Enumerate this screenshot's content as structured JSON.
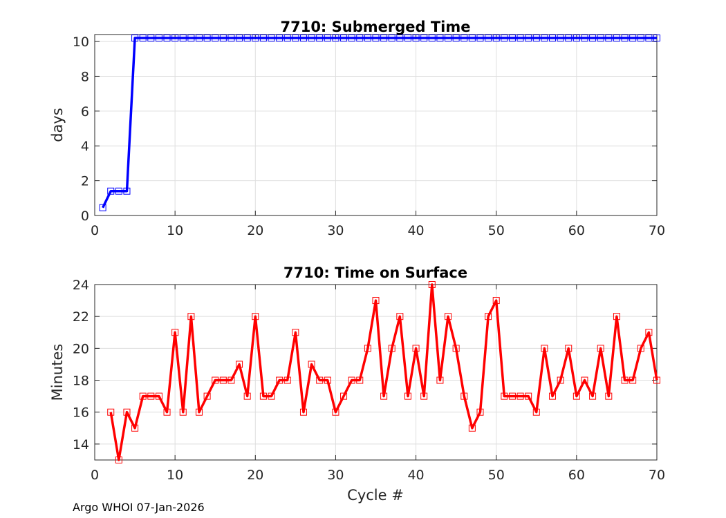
{
  "chart_data": [
    {
      "type": "line",
      "title": "7710: Submerged Time",
      "xlabel": "",
      "ylabel": "days",
      "xlim": [
        0,
        70
      ],
      "ylim": [
        0,
        10.4
      ],
      "xticks": [
        "0",
        "10",
        "20",
        "30",
        "40",
        "50",
        "60",
        "70"
      ],
      "yticks": [
        "0",
        "2",
        "4",
        "6",
        "8",
        "10"
      ],
      "grid": true,
      "series": [
        {
          "name": "submerged_days",
          "color": "#0000ff",
          "marker": "square",
          "x": [
            1,
            2,
            3,
            4,
            5,
            6,
            7,
            8,
            9,
            10,
            11,
            12,
            13,
            14,
            15,
            16,
            17,
            18,
            19,
            20,
            21,
            22,
            23,
            24,
            25,
            26,
            27,
            28,
            29,
            30,
            31,
            32,
            33,
            34,
            35,
            36,
            37,
            38,
            39,
            40,
            41,
            42,
            43,
            44,
            45,
            46,
            47,
            48,
            49,
            50,
            51,
            52,
            53,
            54,
            55,
            56,
            57,
            58,
            59,
            60,
            61,
            62,
            63,
            64,
            65,
            66,
            67,
            68,
            69,
            70
          ],
          "values": [
            0.45,
            1.4,
            1.4,
            1.4,
            10.2,
            10.2,
            10.2,
            10.2,
            10.2,
            10.2,
            10.2,
            10.2,
            10.2,
            10.2,
            10.2,
            10.2,
            10.2,
            10.2,
            10.2,
            10.2,
            10.2,
            10.2,
            10.2,
            10.2,
            10.2,
            10.2,
            10.2,
            10.2,
            10.2,
            10.2,
            10.2,
            10.2,
            10.2,
            10.2,
            10.2,
            10.2,
            10.2,
            10.2,
            10.2,
            10.2,
            10.2,
            10.2,
            10.2,
            10.2,
            10.2,
            10.2,
            10.2,
            10.2,
            10.2,
            10.2,
            10.2,
            10.2,
            10.2,
            10.2,
            10.2,
            10.2,
            10.2,
            10.2,
            10.2,
            10.2,
            10.2,
            10.2,
            10.2,
            10.2,
            10.2,
            10.2,
            10.2,
            10.2,
            10.2,
            10.2
          ]
        }
      ]
    },
    {
      "type": "line",
      "title": "7710: Time on Surface",
      "xlabel": "Cycle #",
      "ylabel": "Minutes",
      "xlim": [
        0,
        70
      ],
      "ylim": [
        13,
        24
      ],
      "xticks": [
        "0",
        "10",
        "20",
        "30",
        "40",
        "50",
        "60",
        "70"
      ],
      "yticks": [
        "14",
        "16",
        "18",
        "20",
        "22",
        "24"
      ],
      "grid": true,
      "series": [
        {
          "name": "surface_minutes",
          "color": "#ff0000",
          "marker": "square",
          "x": [
            2,
            3,
            4,
            5,
            6,
            7,
            8,
            9,
            10,
            11,
            12,
            13,
            14,
            15,
            16,
            17,
            18,
            19,
            20,
            21,
            22,
            23,
            24,
            25,
            26,
            27,
            28,
            29,
            30,
            31,
            32,
            33,
            34,
            35,
            36,
            37,
            38,
            39,
            40,
            41,
            42,
            43,
            44,
            45,
            46,
            47,
            48,
            49,
            50,
            51,
            52,
            53,
            54,
            55,
            56,
            57,
            58,
            59,
            60,
            61,
            62,
            63,
            64,
            65,
            66,
            67,
            68,
            69,
            70
          ],
          "values": [
            16,
            13,
            16,
            15,
            17,
            17,
            17,
            16,
            21,
            16,
            22,
            16,
            17,
            18,
            18,
            18,
            19,
            17,
            22,
            17,
            17,
            18,
            18,
            21,
            16,
            19,
            18,
            18,
            16,
            17,
            18,
            18,
            20,
            23,
            17,
            20,
            22,
            17,
            20,
            17,
            24,
            18,
            22,
            20,
            17,
            15,
            16,
            22,
            23,
            17,
            17,
            17,
            17,
            16,
            20,
            17,
            18,
            20,
            17,
            18,
            17,
            20,
            17,
            22,
            18,
            18,
            20,
            21,
            18
          ]
        }
      ]
    }
  ],
  "footer": "Argo WHOI 07-Jan-2026"
}
